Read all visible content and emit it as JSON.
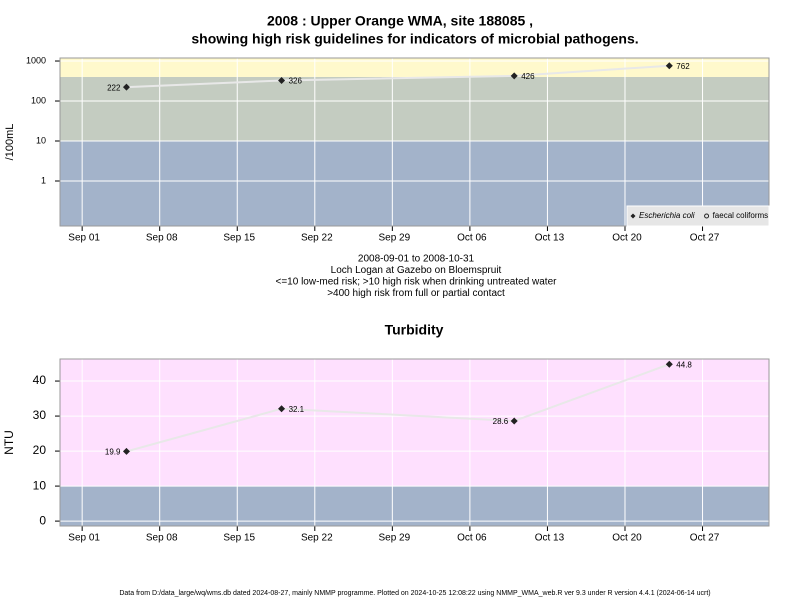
{
  "chart_data": [
    {
      "type": "line",
      "title": "2008 : Upper Orange WMA, site 188085 ,",
      "subtitle": "showing high risk guidelines for indicators of microbial pathogens.",
      "ylabel": "/100mL",
      "log_scale": true,
      "grid": true,
      "legend": "bottom right",
      "x": [
        "Sep 05",
        "Sep 19",
        "Oct 10",
        "Oct 24"
      ],
      "series": [
        {
          "name": "Escherichia coli",
          "color": "#222222",
          "marker": "diamond",
          "values": [
            222,
            326,
            426,
            762
          ]
        },
        {
          "name": "faecal coliforms",
          "color": "#222222",
          "marker": "circle",
          "values": [
            null,
            null,
            null,
            null
          ]
        }
      ],
      "xlim": [
        "Aug 30",
        "Nov 02"
      ],
      "xticks": [
        "Sep 01",
        "Sep 08",
        "Sep 15",
        "Sep 22",
        "Sep 29",
        "Oct 06",
        "Oct 13",
        "Oct 20",
        "Oct 27"
      ],
      "ylim": [
        0.075,
        1190
      ],
      "yticks": [
        1,
        10,
        100,
        1000
      ],
      "bands": [
        {
          "max": 10,
          "color": "#a3b3ca"
        },
        {
          "min": 10,
          "max": 400,
          "color": "#c4ccc1"
        },
        {
          "min": 400,
          "color": "#fff9cc"
        }
      ],
      "notes": [
        "2008-09-01 to 2008-10-31",
        "Loch Logan at Gazebo on Bloemspruit",
        "<=10 low-med risk; >10 high risk when drinking untreated water",
        ">400 high risk from full or partial contact"
      ]
    },
    {
      "type": "line",
      "title": "Turbidity",
      "ylabel": "NTU",
      "log_scale": false,
      "grid": true,
      "x": [
        "Sep 05",
        "Sep 19",
        "Oct 10",
        "Oct 24"
      ],
      "series": [
        {
          "color": "#222222",
          "marker": "diamond",
          "values": [
            19.9,
            32.1,
            28.6,
            44.8
          ]
        }
      ],
      "xlim": [
        "Aug 30",
        "Nov 02"
      ],
      "xticks": [
        "Sep 01",
        "Sep 08",
        "Sep 15",
        "Sep 22",
        "Sep 29",
        "Oct 06",
        "Oct 13",
        "Oct 20",
        "Oct 27"
      ],
      "ylim": [
        -1.4,
        46.3
      ],
      "yticks": [
        0,
        10,
        20,
        30,
        40
      ],
      "bands": [
        {
          "max": 10,
          "color": "#a3b3ca"
        },
        {
          "min": 10,
          "color": "#fee0fe"
        }
      ]
    }
  ],
  "footer": "Data from D:/data_large/wq/wms.db dated 2024-08-27, mainly NMMP programme. Plotted on 2024-10-25 12:08:22 using NMMP_WMA_web.R ver 9.3 under R version 4.4.1 (2024-06-14 ucrt)"
}
